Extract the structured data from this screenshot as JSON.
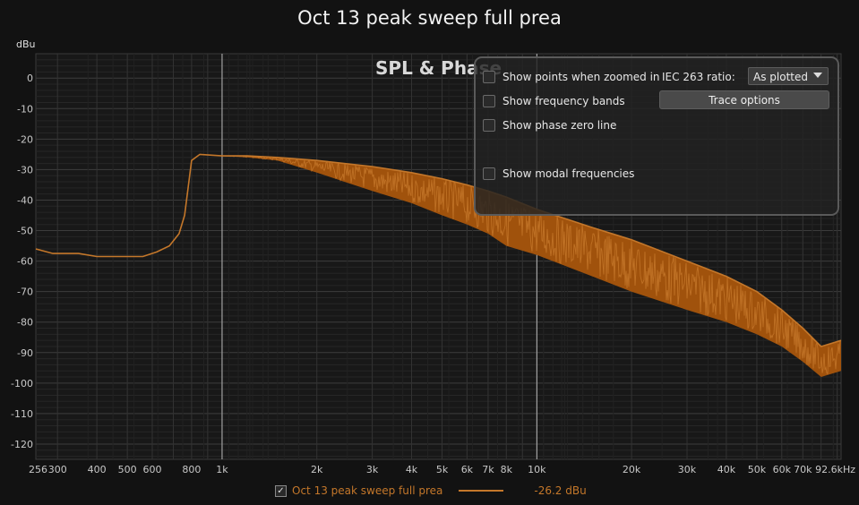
{
  "app": {
    "title": "Oct 13 peak sweep full prea",
    "unit": "dBu",
    "overlay_title": "SPL & Phase"
  },
  "panel": {
    "options": [
      {
        "label": "Show points when zoomed in",
        "checked": false
      },
      {
        "label": "Show frequency bands",
        "checked": false
      },
      {
        "label": "Show phase zero line",
        "checked": false
      },
      {
        "label": "Show modal frequencies",
        "checked": false
      }
    ],
    "ratio_label": "IEC 263 ratio:",
    "ratio_value": "As plotted",
    "trace_button": "Trace options"
  },
  "legend": {
    "checked": true,
    "check_mark": "✓",
    "series_name": "Oct 13 peak sweep  full prea",
    "value": "-26.2 dBu"
  },
  "colors": {
    "trace": "#a0520c",
    "trace_light": "#c4772a",
    "background": "#121212",
    "grid": "#3a3a3a"
  },
  "chart_data": {
    "type": "line",
    "title": "Oct 13 peak sweep full prea",
    "ylabel": "dBu",
    "xlabel": "",
    "x_scale": "log",
    "xlim": [
      256,
      92600
    ],
    "ylim": [
      -125,
      8
    ],
    "x_ticks": [
      {
        "v": 256,
        "t": "256"
      },
      {
        "v": 300,
        "t": "300"
      },
      {
        "v": 400,
        "t": "400"
      },
      {
        "v": 500,
        "t": "500"
      },
      {
        "v": 600,
        "t": "600"
      },
      {
        "v": 800,
        "t": "800"
      },
      {
        "v": 1000,
        "t": "1k"
      },
      {
        "v": 2000,
        "t": "2k"
      },
      {
        "v": 3000,
        "t": "3k"
      },
      {
        "v": 4000,
        "t": "4k"
      },
      {
        "v": 5000,
        "t": "5k"
      },
      {
        "v": 6000,
        "t": "6k"
      },
      {
        "v": 7000,
        "t": "7k"
      },
      {
        "v": 8000,
        "t": "8k"
      },
      {
        "v": 10000,
        "t": "10k"
      },
      {
        "v": 20000,
        "t": "20k"
      },
      {
        "v": 30000,
        "t": "30k"
      },
      {
        "v": 40000,
        "t": "40k"
      },
      {
        "v": 50000,
        "t": "50k"
      },
      {
        "v": 60000,
        "t": "60k"
      },
      {
        "v": 70000,
        "t": "70k"
      },
      {
        "v": 92600,
        "t": "92.6kHz"
      }
    ],
    "y_ticks": [
      0,
      -10,
      -20,
      -30,
      -40,
      -50,
      -60,
      -70,
      -80,
      -90,
      -100,
      -110,
      -120
    ],
    "series": [
      {
        "name": "Oct 13 peak sweep  full prea",
        "upper": [
          [
            256,
            -56
          ],
          [
            290,
            -57.5
          ],
          [
            350,
            -57.5
          ],
          [
            400,
            -58.5
          ],
          [
            500,
            -58.5
          ],
          [
            560,
            -58.5
          ],
          [
            620,
            -57
          ],
          [
            680,
            -55
          ],
          [
            730,
            -51
          ],
          [
            760,
            -45
          ],
          [
            780,
            -36
          ],
          [
            800,
            -27
          ],
          [
            850,
            -25
          ],
          [
            1000,
            -25.5
          ],
          [
            1200,
            -25.5
          ],
          [
            1500,
            -26
          ],
          [
            2000,
            -27
          ],
          [
            3000,
            -29
          ],
          [
            4000,
            -31
          ],
          [
            5000,
            -33
          ],
          [
            6000,
            -35
          ],
          [
            7000,
            -37
          ],
          [
            8000,
            -39
          ],
          [
            10000,
            -43
          ],
          [
            15000,
            -49
          ],
          [
            20000,
            -53
          ],
          [
            30000,
            -60
          ],
          [
            40000,
            -65
          ],
          [
            50000,
            -70
          ],
          [
            60000,
            -76
          ],
          [
            70000,
            -82
          ],
          [
            80000,
            -88
          ],
          [
            92600,
            -86
          ]
        ],
        "lower": [
          [
            256,
            -56
          ],
          [
            290,
            -57.5
          ],
          [
            350,
            -57.5
          ],
          [
            400,
            -58.5
          ],
          [
            500,
            -58.5
          ],
          [
            560,
            -58.5
          ],
          [
            620,
            -57
          ],
          [
            680,
            -55
          ],
          [
            730,
            -51
          ],
          [
            760,
            -45
          ],
          [
            780,
            -36
          ],
          [
            800,
            -27
          ],
          [
            850,
            -25
          ],
          [
            1000,
            -25.5
          ],
          [
            1200,
            -26
          ],
          [
            1500,
            -27
          ],
          [
            2000,
            -31
          ],
          [
            3000,
            -37
          ],
          [
            4000,
            -41
          ],
          [
            5000,
            -45
          ],
          [
            6000,
            -48
          ],
          [
            7000,
            -51
          ],
          [
            8000,
            -55
          ],
          [
            10000,
            -58
          ],
          [
            15000,
            -65
          ],
          [
            20000,
            -70
          ],
          [
            30000,
            -76
          ],
          [
            40000,
            -80
          ],
          [
            50000,
            -84
          ],
          [
            60000,
            -88
          ],
          [
            70000,
            -93
          ],
          [
            80000,
            -98
          ],
          [
            92600,
            -96
          ]
        ]
      }
    ]
  }
}
